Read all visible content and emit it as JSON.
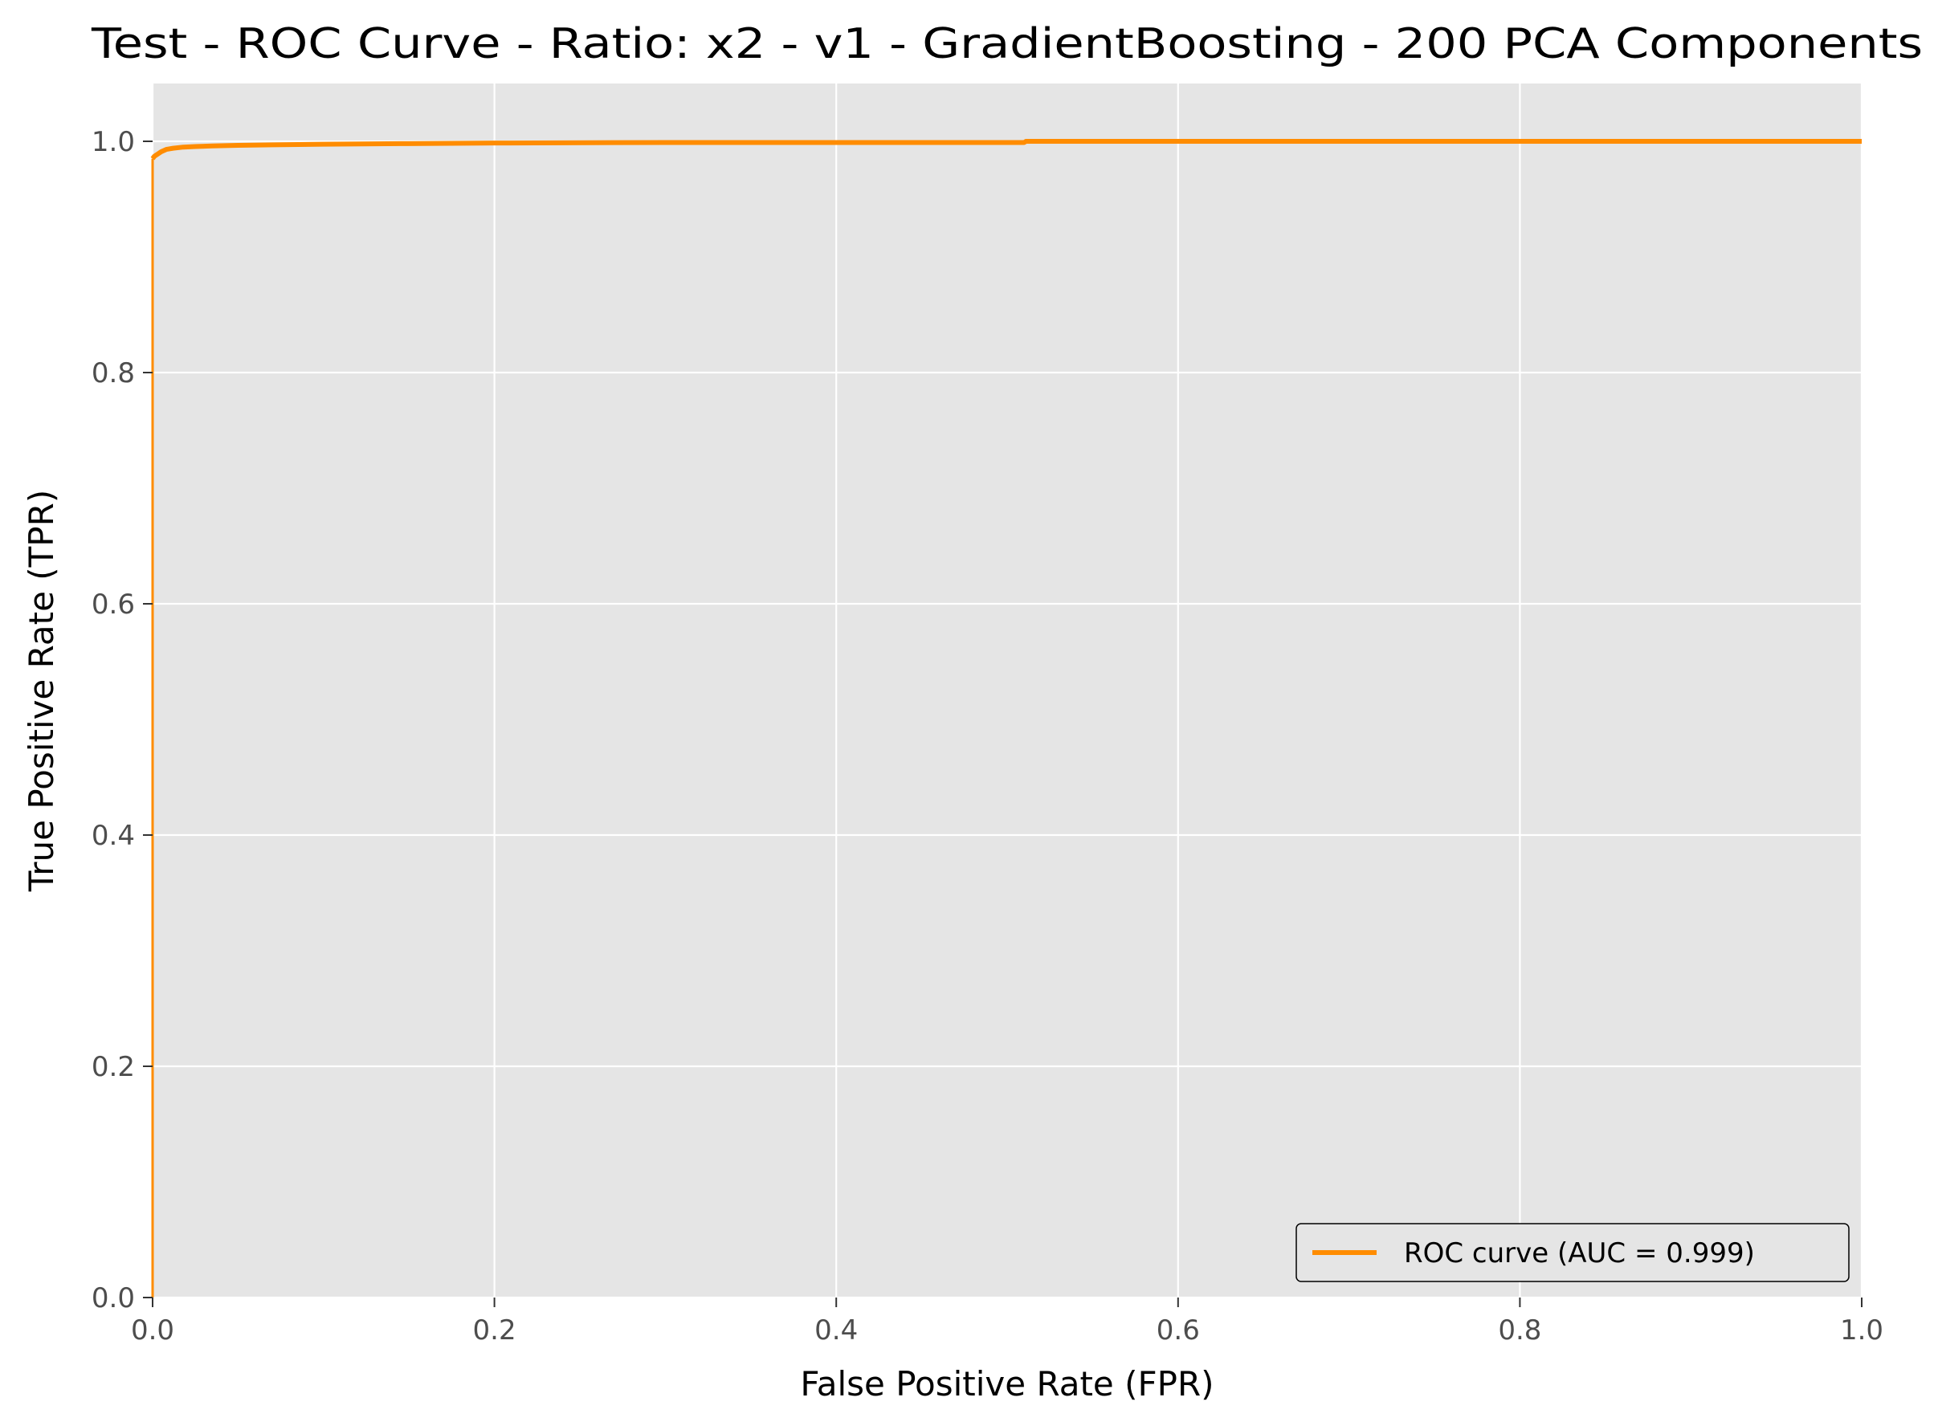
{
  "chart_data": {
    "type": "line",
    "title": "Test - ROC Curve - Ratio: x2 - v1 - GradientBoosting - 200 PCA Components",
    "xlabel": "False Positive Rate (FPR)",
    "ylabel": "True Positive Rate (TPR)",
    "xlim": [
      0.0,
      1.0
    ],
    "ylim": [
      0.0,
      1.05
    ],
    "x_ticks": [
      0.0,
      0.2,
      0.4,
      0.6,
      0.8,
      1.0
    ],
    "x_tick_labels": [
      "0.0",
      "0.2",
      "0.4",
      "0.6",
      "0.8",
      "1.0"
    ],
    "y_ticks": [
      0.0,
      0.2,
      0.4,
      0.6,
      0.8,
      1.0
    ],
    "y_tick_labels": [
      "0.0",
      "0.2",
      "0.4",
      "0.6",
      "0.8",
      "1.0"
    ],
    "grid": true,
    "legend_position": "lower-right",
    "colors": {
      "plot_background": "#e5e5e5",
      "grid": "#ffffff",
      "series": "#ff8c00",
      "tick_text": "#4d4d4d",
      "label_text": "#000000"
    },
    "series": [
      {
        "name": "ROC curve (AUC = 0.999)",
        "x": [
          0.0,
          0.0,
          0.0005,
          0.001,
          0.002,
          0.003,
          0.005,
          0.008,
          0.012,
          0.018,
          0.025,
          0.035,
          0.05,
          0.07,
          0.1,
          0.145,
          0.2,
          0.3,
          0.4,
          0.51,
          0.511,
          0.6,
          0.7,
          0.8,
          0.9,
          1.0
        ],
        "y": [
          0.0,
          0.985,
          0.986,
          0.987,
          0.988,
          0.989,
          0.991,
          0.993,
          0.994,
          0.995,
          0.9955,
          0.996,
          0.9965,
          0.997,
          0.9975,
          0.998,
          0.9985,
          0.999,
          0.999,
          0.999,
          1.0,
          1.0,
          1.0,
          1.0,
          1.0,
          1.0
        ]
      }
    ]
  }
}
